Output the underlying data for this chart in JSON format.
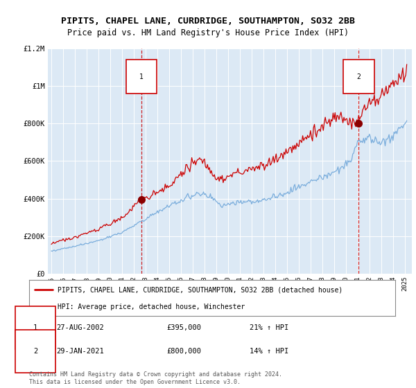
{
  "title": "PIPITS, CHAPEL LANE, CURDRIDGE, SOUTHAMPTON, SO32 2BB",
  "subtitle": "Price paid vs. HM Land Registry's House Price Index (HPI)",
  "title_fontsize": 9.5,
  "subtitle_fontsize": 8.5,
  "plot_bg_color": "#dce9f5",
  "legend_label_red": "PIPITS, CHAPEL LANE, CURDRIDGE, SOUTHAMPTON, SO32 2BB (detached house)",
  "legend_label_blue": "HPI: Average price, detached house, Winchester",
  "footer": "Contains HM Land Registry data © Crown copyright and database right 2024.\nThis data is licensed under the Open Government Licence v3.0.",
  "sale1_date": "27-AUG-2002",
  "sale1_price": "£395,000",
  "sale1_hpi": "21% ↑ HPI",
  "sale2_date": "29-JAN-2021",
  "sale2_price": "£800,000",
  "sale2_hpi": "14% ↑ HPI",
  "ylim": [
    0,
    1200000
  ],
  "yticks": [
    0,
    200000,
    400000,
    600000,
    800000,
    1000000,
    1200000
  ],
  "ytick_labels": [
    "£0",
    "£200K",
    "£400K",
    "£600K",
    "£800K",
    "£1M",
    "£1.2M"
  ],
  "xtick_years": [
    1995,
    1996,
    1997,
    1998,
    1999,
    2000,
    2001,
    2002,
    2003,
    2004,
    2005,
    2006,
    2007,
    2008,
    2009,
    2010,
    2011,
    2012,
    2013,
    2014,
    2015,
    2016,
    2017,
    2018,
    2019,
    2020,
    2021,
    2022,
    2023,
    2024,
    2025
  ],
  "red_color": "#cc0000",
  "blue_color": "#7aaddc",
  "marker1_x": 2002.65,
  "marker1_y": 395000,
  "marker2_x": 2021.08,
  "marker2_y": 800000,
  "vline1_x": 2002.65,
  "vline2_x": 2021.08
}
